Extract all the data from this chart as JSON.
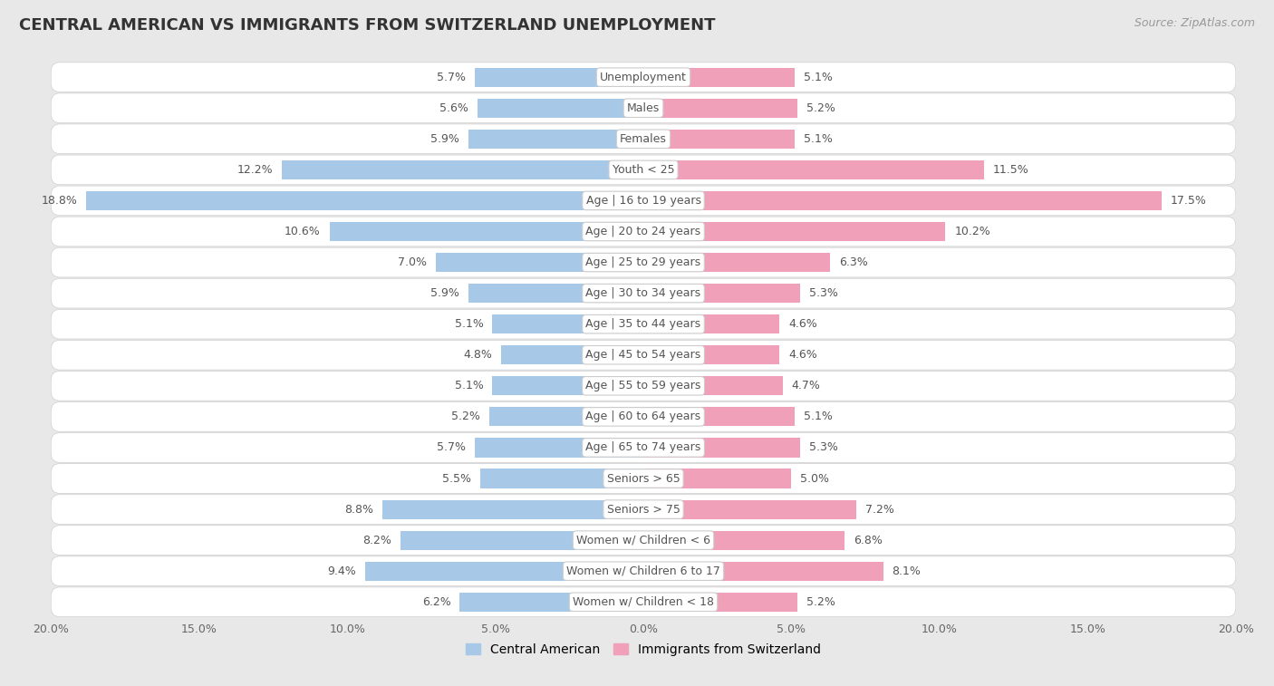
{
  "title": "CENTRAL AMERICAN VS IMMIGRANTS FROM SWITZERLAND UNEMPLOYMENT",
  "source": "Source: ZipAtlas.com",
  "categories": [
    "Unemployment",
    "Males",
    "Females",
    "Youth < 25",
    "Age | 16 to 19 years",
    "Age | 20 to 24 years",
    "Age | 25 to 29 years",
    "Age | 30 to 34 years",
    "Age | 35 to 44 years",
    "Age | 45 to 54 years",
    "Age | 55 to 59 years",
    "Age | 60 to 64 years",
    "Age | 65 to 74 years",
    "Seniors > 65",
    "Seniors > 75",
    "Women w/ Children < 6",
    "Women w/ Children 6 to 17",
    "Women w/ Children < 18"
  ],
  "central_american": [
    5.7,
    5.6,
    5.9,
    12.2,
    18.8,
    10.6,
    7.0,
    5.9,
    5.1,
    4.8,
    5.1,
    5.2,
    5.7,
    5.5,
    8.8,
    8.2,
    9.4,
    6.2
  ],
  "switzerland": [
    5.1,
    5.2,
    5.1,
    11.5,
    17.5,
    10.2,
    6.3,
    5.3,
    4.6,
    4.6,
    4.7,
    5.1,
    5.3,
    5.0,
    7.2,
    6.8,
    8.1,
    5.2
  ],
  "color_central": "#a8c8e8",
  "color_switzerland": "#f0a0b8",
  "background_color": "#e8e8e8",
  "row_bg_color": "#ffffff",
  "row_border_color": "#d0d0d0",
  "max_value": 20.0,
  "label_fontsize": 9.0,
  "title_fontsize": 13,
  "source_fontsize": 9,
  "legend_fontsize": 10,
  "cat_label_fontsize": 9.0,
  "value_label_color": "#555555",
  "cat_label_color": "#555555"
}
